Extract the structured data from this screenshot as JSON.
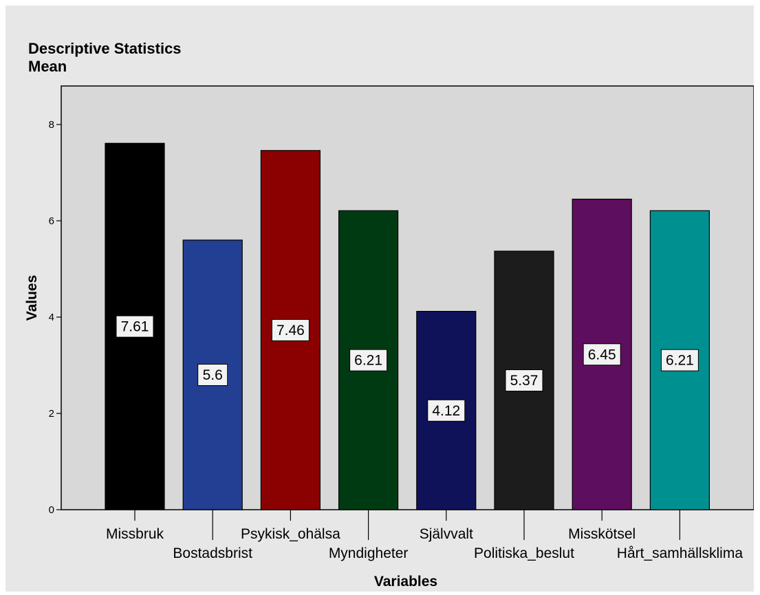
{
  "chart_data": {
    "type": "bar",
    "title": "Descriptive Statistics",
    "subtitle": "Mean",
    "xlabel": "Variables",
    "ylabel": "Values",
    "ylim": [
      0,
      8.8
    ],
    "yticks": [
      0,
      2,
      4,
      6,
      8
    ],
    "grid": false,
    "categories": [
      "Missbruk",
      "Bostadsbrist",
      "Psykisk_ohälsa",
      "Myndigheter",
      "Självvalt",
      "Politiska_beslut",
      "Misskötsel",
      "Hårt_samhällsklima"
    ],
    "values": [
      7.61,
      5.6,
      7.46,
      6.21,
      4.12,
      5.37,
      6.45,
      6.21
    ],
    "data_labels": [
      "7.61",
      "5.6",
      "7.46",
      "6.21",
      "4.12",
      "5.37",
      "6.45",
      "6.21"
    ],
    "colors": [
      "#000000",
      "#223f93",
      "#8b0000",
      "#003a12",
      "#0f1258",
      "#1c1c1c",
      "#5e0e5e",
      "#009090"
    ],
    "plot_background": "#d8d8d8",
    "page_background": "#e7e7e7"
  }
}
